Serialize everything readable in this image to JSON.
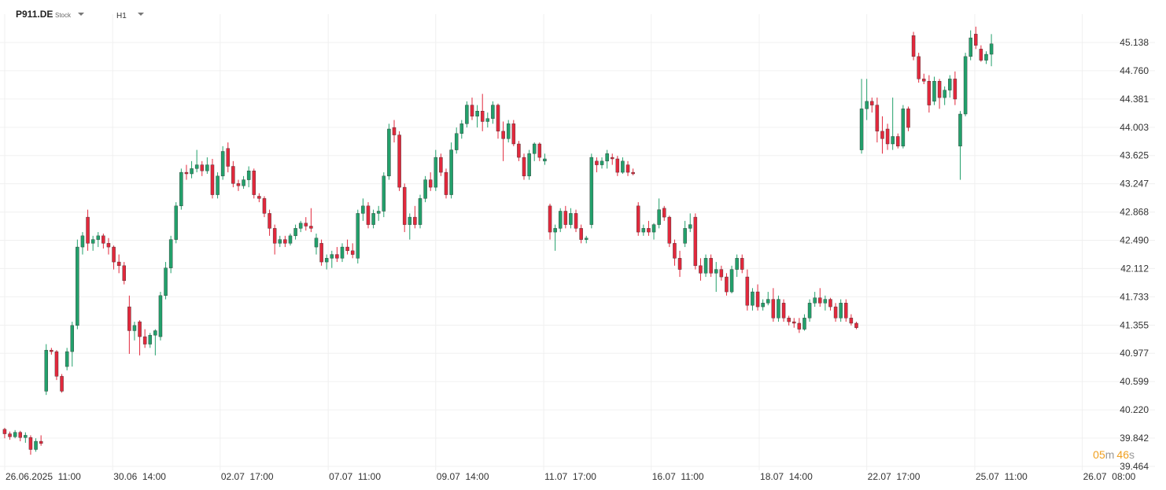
{
  "chart_data": {
    "type": "candlestick",
    "symbol": "P911.DE",
    "asset_type": "Stock",
    "timeframe": "H1",
    "countdown": {
      "minutes": "05",
      "minutes_unit": "m",
      "seconds": "46",
      "seconds_unit": "s"
    },
    "up_color": "#22a06b",
    "down_color": "#e2283c",
    "grid": true,
    "ylim": [
      39.411,
      45.517
    ],
    "yticks": [
      45.138,
      {
        "value": 44.76,
        "label": "44.760"
      },
      44.381,
      44.003,
      43.625,
      43.247,
      42.868,
      {
        "value": 42.49,
        "label": "42.490"
      },
      42.112,
      41.733,
      41.355,
      40.977,
      40.599,
      {
        "value": 40.22,
        "label": "40.220"
      },
      39.842,
      39.464
    ],
    "xlim": [
      -0.9,
      221.5
    ],
    "xticks": [
      {
        "value": 0,
        "label": "26.06.2025  11:00"
      },
      {
        "value": 20.8,
        "label": "30.06  14:00"
      },
      {
        "value": 41.5,
        "label": "02.07  17:00"
      },
      {
        "value": 62.3,
        "label": "07.07  11:00"
      },
      {
        "value": 83,
        "label": "09.07  14:00"
      },
      {
        "value": 103.8,
        "label": "11.07  17:00"
      },
      {
        "value": 124.5,
        "label": "16.07  11:00"
      },
      {
        "value": 145.3,
        "label": "18.07  14:00"
      },
      {
        "value": 166,
        "label": "22.07  17:00"
      },
      {
        "value": 186.8,
        "label": "25.07  11:00"
      },
      {
        "value": 207.5,
        "label": "26.07  08:00"
      }
    ],
    "candles": [
      [
        39.96,
        39.98,
        39.84,
        39.9
      ],
      [
        39.9,
        39.93,
        39.82,
        39.86
      ],
      [
        39.86,
        39.95,
        39.84,
        39.92
      ],
      [
        39.92,
        39.94,
        39.8,
        39.85
      ],
      [
        39.85,
        39.92,
        39.78,
        39.88
      ],
      [
        39.85,
        39.88,
        39.62,
        39.69
      ],
      [
        39.69,
        39.84,
        39.66,
        39.8
      ],
      [
        39.8,
        39.88,
        39.74,
        39.77
      ],
      [
        40.47,
        41.1,
        40.42,
        41.02
      ],
      [
        41.02,
        41.05,
        40.96,
        41.0
      ],
      [
        41.0,
        41.02,
        40.62,
        40.67
      ],
      [
        40.67,
        40.7,
        40.45,
        40.47
      ],
      [
        40.8,
        41.05,
        40.75,
        41.0
      ],
      [
        41.0,
        41.4,
        40.8,
        41.35
      ],
      [
        41.35,
        42.5,
        41.3,
        42.4
      ],
      [
        42.4,
        42.6,
        42.3,
        42.55
      ],
      [
        42.8,
        42.9,
        42.35,
        42.45
      ],
      [
        42.45,
        42.55,
        42.35,
        42.5
      ],
      [
        42.5,
        42.6,
        42.4,
        42.55
      ],
      [
        42.55,
        42.58,
        42.38,
        42.45
      ],
      [
        42.45,
        42.52,
        42.3,
        42.4
      ],
      [
        42.4,
        42.42,
        42.1,
        42.2
      ],
      [
        42.2,
        42.3,
        42.05,
        42.15
      ],
      [
        42.15,
        42.2,
        41.9,
        41.95
      ],
      [
        41.6,
        41.75,
        40.97,
        41.28
      ],
      [
        41.28,
        41.4,
        41.15,
        41.35
      ],
      [
        41.4,
        41.42,
        40.95,
        41.2
      ],
      [
        41.2,
        41.3,
        41.05,
        41.1
      ],
      [
        41.1,
        41.25,
        41.05,
        41.22
      ],
      [
        41.22,
        41.3,
        40.95,
        41.28
      ],
      [
        41.2,
        41.8,
        41.15,
        41.75
      ],
      [
        41.75,
        42.2,
        41.7,
        42.12
      ],
      [
        42.12,
        42.55,
        42.05,
        42.5
      ],
      [
        42.5,
        43.0,
        42.45,
        42.95
      ],
      [
        42.95,
        43.45,
        42.9,
        43.4
      ],
      [
        43.4,
        43.5,
        43.3,
        43.38
      ],
      [
        43.38,
        43.55,
        43.32,
        43.45
      ],
      [
        43.45,
        43.7,
        43.4,
        43.5
      ],
      [
        43.5,
        43.55,
        43.35,
        43.42
      ],
      [
        43.42,
        43.6,
        43.38,
        43.5
      ],
      [
        43.5,
        43.58,
        43.05,
        43.1
      ],
      [
        43.1,
        43.4,
        43.05,
        43.35
      ],
      [
        43.35,
        43.75,
        43.3,
        43.68
      ],
      [
        43.72,
        43.8,
        43.4,
        43.48
      ],
      [
        43.48,
        43.55,
        43.2,
        43.25
      ],
      [
        43.25,
        43.3,
        43.15,
        43.22
      ],
      [
        43.22,
        43.35,
        43.18,
        43.3
      ],
      [
        43.3,
        43.48,
        43.2,
        43.42
      ],
      [
        43.42,
        43.45,
        43.05,
        43.1
      ],
      [
        43.08,
        43.12,
        43.0,
        43.05
      ],
      [
        43.05,
        43.08,
        42.8,
        42.85
      ],
      [
        42.85,
        42.9,
        42.55,
        42.65
      ],
      [
        42.65,
        42.7,
        42.3,
        42.45
      ],
      [
        42.45,
        42.55,
        42.4,
        42.5
      ],
      [
        42.5,
        42.55,
        42.4,
        42.45
      ],
      [
        42.45,
        42.58,
        42.42,
        42.55
      ],
      [
        42.55,
        42.7,
        42.5,
        42.65
      ],
      [
        42.65,
        42.75,
        42.6,
        42.72
      ],
      [
        42.72,
        42.8,
        42.62,
        42.68
      ],
      [
        42.68,
        42.92,
        42.6,
        42.65
      ],
      [
        42.4,
        42.58,
        42.3,
        42.52
      ],
      [
        42.45,
        42.5,
        42.15,
        42.2
      ],
      [
        42.2,
        42.3,
        42.1,
        42.25
      ],
      [
        42.25,
        42.35,
        42.12,
        42.3
      ],
      [
        42.3,
        42.4,
        42.2,
        42.25
      ],
      [
        42.25,
        42.45,
        42.2,
        42.4
      ],
      [
        42.4,
        42.5,
        42.3,
        42.35
      ],
      [
        42.35,
        42.45,
        42.25,
        42.3
      ],
      [
        42.25,
        42.9,
        42.18,
        42.85
      ],
      [
        42.85,
        43.05,
        42.75,
        42.95
      ],
      [
        42.95,
        43.0,
        42.65,
        42.7
      ],
      [
        42.7,
        42.9,
        42.65,
        42.85
      ],
      [
        42.85,
        42.95,
        42.75,
        42.88
      ],
      [
        42.88,
        43.4,
        42.8,
        43.35
      ],
      [
        43.35,
        44.05,
        43.3,
        43.98
      ],
      [
        44.0,
        44.1,
        43.8,
        43.9
      ],
      [
        43.9,
        43.95,
        43.15,
        43.2
      ],
      [
        43.2,
        43.25,
        42.6,
        42.7
      ],
      [
        42.7,
        42.85,
        42.5,
        42.8
      ],
      [
        42.8,
        42.95,
        42.65,
        42.7
      ],
      [
        42.7,
        43.1,
        42.65,
        43.05
      ],
      [
        43.05,
        43.35,
        43.0,
        43.3
      ],
      [
        43.3,
        43.4,
        43.15,
        43.2
      ],
      [
        43.2,
        43.7,
        43.15,
        43.6
      ],
      [
        43.6,
        43.65,
        43.35,
        43.4
      ],
      [
        43.4,
        43.45,
        43.05,
        43.1
      ],
      [
        43.1,
        43.8,
        43.05,
        43.7
      ],
      [
        43.7,
        44.0,
        43.65,
        43.92
      ],
      [
        43.92,
        44.1,
        43.85,
        44.05
      ],
      [
        44.05,
        44.35,
        44.0,
        44.3
      ],
      [
        44.3,
        44.4,
        44.1,
        44.15
      ],
      [
        44.15,
        44.3,
        44.0,
        44.22
      ],
      [
        44.22,
        44.45,
        43.95,
        44.08
      ],
      [
        44.08,
        44.2,
        44.0,
        44.12
      ],
      [
        44.12,
        44.35,
        44.05,
        44.3
      ],
      [
        44.3,
        44.32,
        43.85,
        43.95
      ],
      [
        43.95,
        44.08,
        43.55,
        43.85
      ],
      [
        43.85,
        44.1,
        43.8,
        44.05
      ],
      [
        44.05,
        44.1,
        43.75,
        43.78
      ],
      [
        43.78,
        43.82,
        43.55,
        43.6
      ],
      [
        43.6,
        43.65,
        43.3,
        43.35
      ],
      [
        43.35,
        43.7,
        43.3,
        43.65
      ],
      [
        43.65,
        43.8,
        43.55,
        43.78
      ],
      [
        43.78,
        43.8,
        43.55,
        43.6
      ],
      [
        43.55,
        43.65,
        43.5,
        43.58
      ],
      [
        42.95,
        42.98,
        42.5,
        42.6
      ],
      [
        42.6,
        42.7,
        42.35,
        42.65
      ],
      [
        42.65,
        42.92,
        42.6,
        42.88
      ],
      [
        42.88,
        42.95,
        42.65,
        42.7
      ],
      [
        42.7,
        42.92,
        42.65,
        42.85
      ],
      [
        42.85,
        42.9,
        42.6,
        42.65
      ],
      [
        42.65,
        42.7,
        42.45,
        42.5
      ],
      [
        42.5,
        42.55,
        42.45,
        42.52
      ],
      [
        42.7,
        43.65,
        42.65,
        43.6
      ],
      [
        43.55,
        43.6,
        43.4,
        43.5
      ],
      [
        43.5,
        43.6,
        43.45,
        43.55
      ],
      [
        43.55,
        43.7,
        43.45,
        43.65
      ],
      [
        43.6,
        43.65,
        43.5,
        43.58
      ],
      [
        43.58,
        43.62,
        43.35,
        43.4
      ],
      [
        43.4,
        43.6,
        43.38,
        43.55
      ],
      [
        43.5,
        43.55,
        43.35,
        43.4
      ],
      [
        43.4,
        43.45,
        43.36,
        43.38
      ],
      [
        42.95,
        43.0,
        42.55,
        42.6
      ],
      [
        42.6,
        42.7,
        42.55,
        42.65
      ],
      [
        42.65,
        42.75,
        42.55,
        42.6
      ],
      [
        42.6,
        42.72,
        42.5,
        42.7
      ],
      [
        42.7,
        43.05,
        42.65,
        42.9
      ],
      [
        42.92,
        42.95,
        42.75,
        42.8
      ],
      [
        42.8,
        42.82,
        42.4,
        42.45
      ],
      [
        42.45,
        42.5,
        42.15,
        42.25
      ],
      [
        42.25,
        42.35,
        42.0,
        42.1
      ],
      [
        42.45,
        42.75,
        42.4,
        42.65
      ],
      [
        42.65,
        42.85,
        42.6,
        42.7
      ],
      [
        42.8,
        42.85,
        42.1,
        42.15
      ],
      [
        42.15,
        42.25,
        41.95,
        42.05
      ],
      [
        42.05,
        42.3,
        42.0,
        42.25
      ],
      [
        42.25,
        42.3,
        42.0,
        42.05
      ],
      [
        42.05,
        42.2,
        41.8,
        42.1
      ],
      [
        42.1,
        42.15,
        41.95,
        42.0
      ],
      [
        42.0,
        42.05,
        41.75,
        41.8
      ],
      [
        41.8,
        42.15,
        41.78,
        42.1
      ],
      [
        42.1,
        42.3,
        42.0,
        42.25
      ],
      [
        42.25,
        42.3,
        42.05,
        42.1
      ],
      [
        42.0,
        42.1,
        41.55,
        41.62
      ],
      [
        41.62,
        41.85,
        41.55,
        41.8
      ],
      [
        41.8,
        41.9,
        41.55,
        41.6
      ],
      [
        41.6,
        41.7,
        41.55,
        41.65
      ],
      [
        41.65,
        41.8,
        41.62,
        41.7
      ],
      [
        41.7,
        41.85,
        41.4,
        41.45
      ],
      [
        41.45,
        41.75,
        41.4,
        41.7
      ],
      [
        41.65,
        41.7,
        41.4,
        41.45
      ],
      [
        41.45,
        41.48,
        41.35,
        41.4
      ],
      [
        41.4,
        41.45,
        41.32,
        41.38
      ],
      [
        41.38,
        41.45,
        41.25,
        41.3
      ],
      [
        41.3,
        41.5,
        41.28,
        41.45
      ],
      [
        41.45,
        41.7,
        41.4,
        41.65
      ],
      [
        41.65,
        41.8,
        41.6,
        41.72
      ],
      [
        41.72,
        41.85,
        41.6,
        41.65
      ],
      [
        41.65,
        41.75,
        41.55,
        41.7
      ],
      [
        41.7,
        41.72,
        41.55,
        41.6
      ],
      [
        41.6,
        41.65,
        41.4,
        41.45
      ],
      [
        41.45,
        41.7,
        41.4,
        41.65
      ],
      [
        41.65,
        41.7,
        41.4,
        41.45
      ],
      [
        41.45,
        41.5,
        41.35,
        41.38
      ],
      [
        41.38,
        41.4,
        41.3,
        41.32
      ],
      [
        43.7,
        44.65,
        43.65,
        44.25
      ],
      [
        44.25,
        44.65,
        44.1,
        44.35
      ],
      [
        44.35,
        44.4,
        44.2,
        44.3
      ],
      [
        44.3,
        44.4,
        43.8,
        43.95
      ],
      [
        43.95,
        44.15,
        43.65,
        43.85
      ],
      [
        43.98,
        44.05,
        43.7,
        43.78
      ],
      [
        43.78,
        44.4,
        43.7,
        43.88
      ],
      [
        43.88,
        43.92,
        43.72,
        43.75
      ],
      [
        43.75,
        44.3,
        43.72,
        44.25
      ],
      [
        44.25,
        44.28,
        43.95,
        44.0
      ],
      [
        45.23,
        45.28,
        44.9,
        44.95
      ],
      [
        44.95,
        45.0,
        44.6,
        44.65
      ],
      [
        44.65,
        44.72,
        44.58,
        44.62
      ],
      [
        44.62,
        44.7,
        44.2,
        44.3
      ],
      [
        44.35,
        44.68,
        44.3,
        44.62
      ],
      [
        44.62,
        44.65,
        44.25,
        44.4
      ],
      [
        44.4,
        44.55,
        44.3,
        44.5
      ],
      [
        44.5,
        44.7,
        44.4,
        44.65
      ],
      [
        44.65,
        44.75,
        44.3,
        44.38
      ],
      [
        43.75,
        44.22,
        43.3,
        44.18
      ],
      [
        44.18,
        45.0,
        44.15,
        44.95
      ],
      [
        44.95,
        45.3,
        44.9,
        45.2
      ],
      [
        45.25,
        45.35,
        45.05,
        45.1
      ],
      [
        45.05,
        45.1,
        44.88,
        44.9
      ],
      [
        44.9,
        45.02,
        44.85,
        44.98
      ],
      [
        44.98,
        45.25,
        44.82,
        45.12
      ]
    ]
  }
}
